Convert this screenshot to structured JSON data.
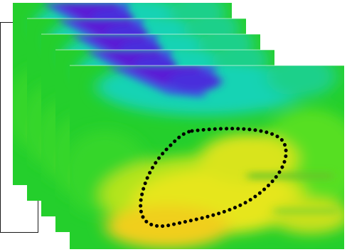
{
  "figure": {
    "layer_count": 5,
    "colormap": {
      "stops": [
        "#5a1fd6",
        "#2f7fe0",
        "#19d3b4",
        "#21cf2e",
        "#8ee61a",
        "#e9e81c",
        "#f2c21a"
      ]
    },
    "outline_box_color": "#1a1a1a",
    "region_outline": {
      "style": "dotted",
      "color": "#000000"
    }
  }
}
